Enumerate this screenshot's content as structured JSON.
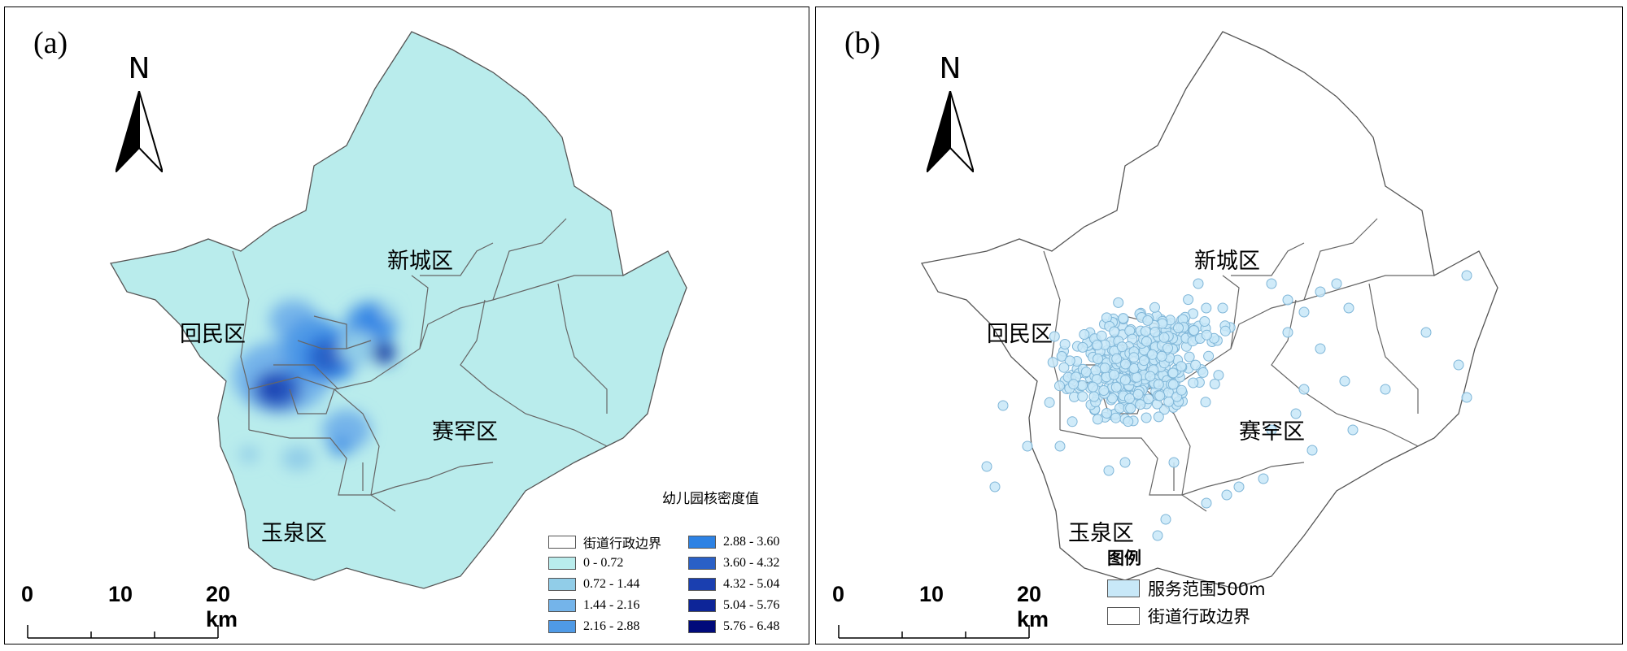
{
  "colors": {
    "base_fill": "#b9ecec",
    "boundary": "#666666",
    "density_classes": [
      "#b9ecec",
      "#91cde8",
      "#74b4ea",
      "#4f9ae6",
      "#2d82e4",
      "#2a60c6",
      "#1a3fb0",
      "#0d2598",
      "#000a7a"
    ],
    "service_fill": "#c8e8f8",
    "service_stroke": "#7fb6d8"
  },
  "panel_a": {
    "label": "(a)",
    "north_letter": "N",
    "districts": {
      "xincheng": "新城区",
      "huimin": "回民区",
      "saihan": "赛罕区",
      "yuquan": "玉泉区"
    },
    "scale": {
      "t0": "0",
      "t1": "10",
      "t2": "20 km"
    },
    "legend": {
      "title": "幼儿园核密度值",
      "boundary_label": "街道行政边界",
      "classes": [
        "0 - 0.72",
        "0.72 - 1.44",
        "1.44 - 2.16",
        "2.16 - 2.88",
        "2.88 - 3.60",
        "3.60 - 4.32",
        "4.32 - 5.04",
        "5.04 - 5.76",
        "5.76 - 6.48"
      ]
    }
  },
  "panel_b": {
    "label": "(b)",
    "north_letter": "N",
    "districts": {
      "xincheng": "新城区",
      "huimin": "回民区",
      "saihan": "赛罕区",
      "yuquan": "玉泉区"
    },
    "scale": {
      "t0": "0",
      "t1": "10",
      "t2": "20 km"
    },
    "legend": {
      "title": "图例",
      "service_label": "服务范围500m",
      "boundary_label": "街道行政边界"
    }
  }
}
